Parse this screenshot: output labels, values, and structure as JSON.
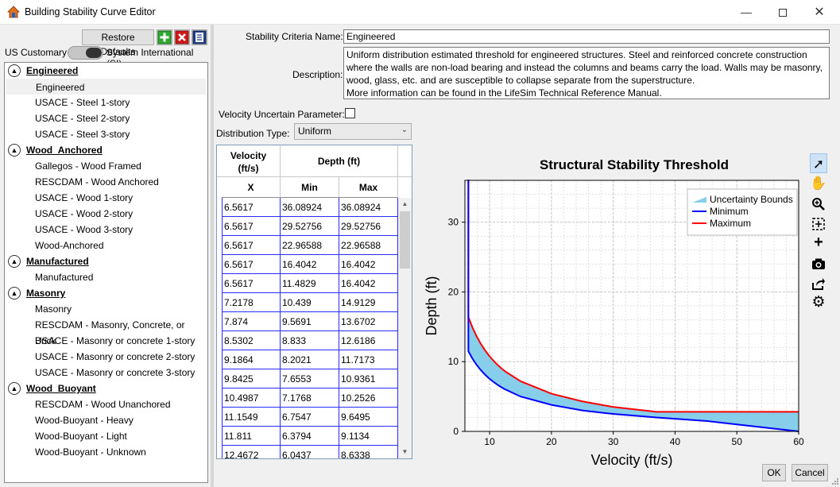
{
  "window": {
    "title": "Building Stability Curve Editor",
    "minimize_glyph": "—",
    "close_glyph": "✕"
  },
  "left": {
    "restore_label": "Restore Defaults",
    "unit_left": "US Customary",
    "unit_right": "System International (SI)",
    "groups": [
      {
        "name": "Engineered",
        "items": [
          "Engineered",
          "USACE - Steel 1-story",
          "USACE - Steel 2-story",
          "USACE - Steel 3-story"
        ]
      },
      {
        "name": "Wood_Anchored",
        "items": [
          "Gallegos - Wood Framed",
          "RESCDAM - Wood Anchored",
          "USACE - Wood 1-story",
          "USACE - Wood 2-story",
          "USACE - Wood 3-story",
          "Wood-Anchored"
        ]
      },
      {
        "name": "Manufactured",
        "items": [
          "Manufactured"
        ]
      },
      {
        "name": "Masonry",
        "items": [
          "Masonry",
          "RESCDAM - Masonry, Concrete, or Brick",
          "USACE - Masonry or concrete 1-story",
          "USACE - Masonry or concrete 2-story",
          "USACE - Masonry or concrete 3-story"
        ]
      },
      {
        "name": "Wood_Buoyant",
        "items": [
          "RESCDAM - Wood Unanchored",
          "Wood-Buoyant - Heavy",
          "Wood-Buoyant - Light",
          "Wood-Buoyant - Unknown"
        ]
      }
    ]
  },
  "form": {
    "criteria_label": "Stability Criteria Name:",
    "criteria_value": "Engineered",
    "description_label": "Description:",
    "description_lines": [
      "Uniform distribution estimated threshold for engineered structures. Steel and reinforced concrete construction",
      "where the walls are non-load bearing and instead the columns and beams carry the load. Walls may be masonry,",
      "wood, glass, etc. and are susceptible to collapse separate from the superstructure.",
      "More information can be found in the LifeSim Technical Reference Manual."
    ],
    "velocity_uncertain_label": "Velocity Uncertain Parameter:",
    "velocity_uncertain_checked": false,
    "distribution_label": "Distribution Type:",
    "distribution_value": "Uniform"
  },
  "table": {
    "velocity_header_line1": "Velocity",
    "velocity_header_line2": "(ft/s)",
    "depth_header": "Depth (ft)",
    "col_x": "X",
    "col_min": "Min",
    "col_max": "Max",
    "rows": [
      [
        "6.5617",
        "36.08924",
        "36.08924"
      ],
      [
        "6.5617",
        "29.52756",
        "29.52756"
      ],
      [
        "6.5617",
        "22.96588",
        "22.96588"
      ],
      [
        "6.5617",
        "16.4042",
        "16.4042"
      ],
      [
        "6.5617",
        "11.4829",
        "16.4042"
      ],
      [
        "7.2178",
        "10.439",
        "14.9129"
      ],
      [
        "7.874",
        "9.5691",
        "13.6702"
      ],
      [
        "8.5302",
        "8.833",
        "12.6186"
      ],
      [
        "9.1864",
        "8.2021",
        "11.7173"
      ],
      [
        "9.8425",
        "7.6553",
        "10.9361"
      ],
      [
        "10.4987",
        "7.1768",
        "10.2526"
      ],
      [
        "11.1549",
        "6.7547",
        "9.6495"
      ],
      [
        "11.811",
        "6.3794",
        "9.1134"
      ],
      [
        "12.4672",
        "6.0437",
        "8.6338"
      ]
    ]
  },
  "chart_data": {
    "type": "area",
    "title": "Structural Stability Threshold",
    "xlabel": "Velocity (ft/s)",
    "ylabel": "Depth (ft)",
    "xlim": [
      6,
      60
    ],
    "ylim": [
      0,
      36
    ],
    "xticks": [
      10,
      20,
      30,
      40,
      50,
      60
    ],
    "yticks": [
      0,
      10,
      20,
      30
    ],
    "grid": true,
    "legend_position": "top-right",
    "series": [
      {
        "name": "Uncertainty Bounds",
        "color": "#87ceeb"
      },
      {
        "name": "Minimum",
        "color": "#0000ff",
        "x": [
          6.5617,
          6.5617,
          7.2178,
          7.874,
          8.5302,
          9.1864,
          9.8425,
          10.4987,
          11.1549,
          11.811,
          12.4672,
          15,
          20,
          25,
          30,
          37,
          45,
          50,
          60
        ],
        "y": [
          36.08924,
          11.4829,
          10.439,
          9.5691,
          8.833,
          8.2021,
          7.6553,
          7.1768,
          6.7547,
          6.3794,
          6.0437,
          5.0,
          3.8,
          3.0,
          2.5,
          2.0,
          1.5,
          1.0,
          0.0
        ]
      },
      {
        "name": "Maximum",
        "color": "#ff0000",
        "x": [
          6.5617,
          6.5617,
          7.2178,
          7.874,
          8.5302,
          9.1864,
          9.8425,
          10.4987,
          11.1549,
          11.811,
          12.4672,
          15,
          20,
          25,
          30,
          37,
          45,
          50,
          60
        ],
        "y": [
          36.08924,
          16.4042,
          14.9129,
          13.6702,
          12.6186,
          11.7173,
          10.9361,
          10.2526,
          9.6495,
          9.1134,
          8.6338,
          7.2,
          5.4,
          4.3,
          3.5,
          2.8,
          2.8,
          2.8,
          2.8
        ]
      }
    ]
  },
  "buttons": {
    "ok": "OK",
    "cancel": "Cancel"
  },
  "chart_tools": [
    "pointer-icon",
    "pan-hand-icon",
    "zoom-icon",
    "zoom-extents-icon",
    "add-point-icon",
    "camera-icon",
    "export-icon",
    "settings-gear-icon"
  ]
}
